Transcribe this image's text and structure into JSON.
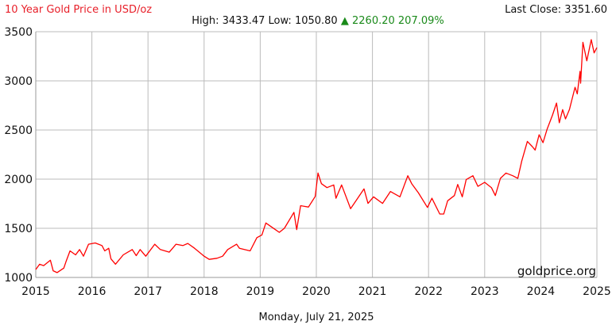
{
  "header": {
    "title": "10 Year Gold Price in USD/oz",
    "title_color": "#e8202a",
    "last_close": "Last Close: 3351.60",
    "high_label": "High: 3433.47",
    "low_label": "Low: 1050.80",
    "change_arrow": "▲",
    "change_value": "2260.20",
    "change_pct": "207.09%",
    "change_color": "#1a8a1a"
  },
  "footer": {
    "date": "Monday, July 21, 2025",
    "watermark": "goldprice.org"
  },
  "chart_data": {
    "type": "line",
    "title": "10 Year Gold Price in USD/oz",
    "xlabel": "",
    "ylabel": "",
    "xlim": [
      2015,
      2025
    ],
    "ylim": [
      1000,
      3500
    ],
    "grid": true,
    "x_ticks": [
      "2015",
      "2016",
      "2017",
      "2018",
      "2019",
      "2020",
      "2021",
      "2022",
      "2023",
      "2024",
      "2025"
    ],
    "y_ticks": [
      "1000",
      "1500",
      "2000",
      "2500",
      "3000",
      "3500"
    ],
    "line_color": "#ff0000",
    "series": [
      {
        "x": [
          2015.0,
          2015.07,
          2015.14,
          2015.26,
          2015.31,
          2015.38,
          2015.5,
          2015.54,
          2015.61,
          2015.71,
          2015.78,
          2015.85,
          2015.94,
          2016.06,
          2016.18,
          2016.23,
          2016.3,
          2016.34,
          2016.42,
          2016.56,
          2016.72,
          2016.79,
          2016.86,
          2016.96,
          2017.12,
          2017.22,
          2017.38,
          2017.5,
          2017.62,
          2017.71,
          2017.83,
          2018.0,
          2018.09,
          2018.23,
          2018.33,
          2018.42,
          2018.58,
          2018.63,
          2018.82,
          2018.94,
          2019.03,
          2019.1,
          2019.27,
          2019.34,
          2019.43,
          2019.6,
          2019.65,
          2019.72,
          2019.86,
          2019.98,
          2020.03,
          2020.09,
          2020.19,
          2020.31,
          2020.35,
          2020.45,
          2020.61,
          2020.85,
          2020.92,
          2021.02,
          2021.18,
          2021.32,
          2021.49,
          2021.63,
          2021.7,
          2021.82,
          2021.98,
          2022.06,
          2022.2,
          2022.27,
          2022.34,
          2022.46,
          2022.52,
          2022.6,
          2022.67,
          2022.79,
          2022.88,
          2023.0,
          2023.12,
          2023.19,
          2023.28,
          2023.38,
          2023.5,
          2023.59,
          2023.66,
          2023.76,
          2023.85,
          2023.9,
          2023.97,
          2024.04,
          2024.11,
          2024.21,
          2024.28,
          2024.33,
          2024.39,
          2024.44,
          2024.51,
          2024.61,
          2024.65,
          2024.7,
          2024.71,
          2024.75,
          2024.82,
          2024.9,
          2024.95,
          2025.0
        ],
        "y": [
          1081,
          1135,
          1120,
          1175,
          1068,
          1049,
          1095,
          1162,
          1270,
          1230,
          1284,
          1216,
          1338,
          1351,
          1324,
          1270,
          1297,
          1189,
          1135,
          1230,
          1284,
          1222,
          1284,
          1216,
          1338,
          1284,
          1257,
          1338,
          1324,
          1346,
          1297,
          1216,
          1184,
          1195,
          1216,
          1284,
          1338,
          1297,
          1270,
          1405,
          1432,
          1554,
          1486,
          1459,
          1500,
          1662,
          1486,
          1730,
          1716,
          1824,
          2062,
          1954,
          1914,
          1941,
          1806,
          1941,
          1699,
          1901,
          1753,
          1820,
          1753,
          1874,
          1820,
          2035,
          1954,
          1860,
          1712,
          1806,
          1645,
          1645,
          1780,
          1833,
          1946,
          1820,
          1995,
          2035,
          1927,
          1968,
          1914,
          1833,
          2008,
          2062,
          2035,
          2008,
          2183,
          2384,
          2331,
          2296,
          2452,
          2371,
          2505,
          2653,
          2774,
          2573,
          2707,
          2613,
          2707,
          2935,
          2868,
          3097,
          2976,
          3392,
          3204,
          3419,
          3285,
          3339
        ]
      }
    ]
  }
}
